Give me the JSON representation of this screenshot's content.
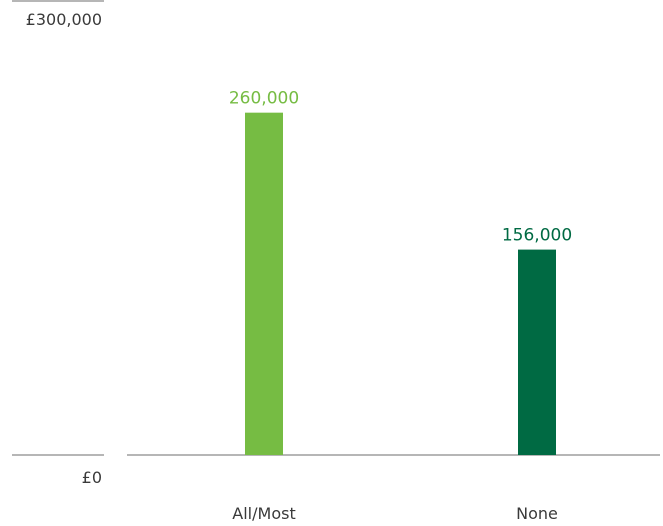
{
  "chart_data": {
    "type": "bar",
    "categories": [
      "All/Most",
      "None"
    ],
    "values": [
      260000,
      156000
    ],
    "data_labels": [
      "260,000",
      "156,000"
    ],
    "ylim": [
      0,
      300000
    ],
    "y_ticks": [
      {
        "value": 300000,
        "label": "£300,000"
      },
      {
        "value": 0,
        "label": "£0"
      }
    ],
    "title": "",
    "xlabel": "",
    "ylabel": "",
    "grid": false,
    "colors": [
      "#76bc43",
      "#006a43"
    ],
    "axis_color": "#8a8a8a",
    "label_color": "#3a3a3a"
  }
}
